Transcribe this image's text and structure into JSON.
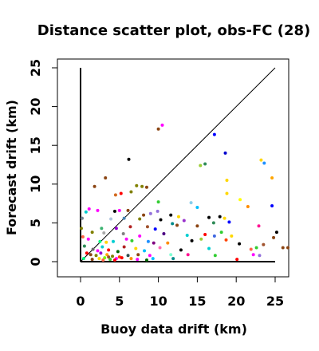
{
  "chart_data": {
    "type": "scatter",
    "title": "Distance scatter plot, obs-FC (28)",
    "xlabel": "Buoy data drift (km)",
    "ylabel": "Forecast drift (km)",
    "xlim": [
      -3,
      27
    ],
    "ylim": [
      -2,
      26
    ],
    "x_ticks": [
      0,
      5,
      10,
      15,
      20,
      25
    ],
    "y_ticks": [
      0,
      5,
      10,
      15,
      20,
      25
    ],
    "x_tick_labels": [
      "0",
      "5",
      "10",
      "15",
      "20",
      "25"
    ],
    "y_tick_labels": [
      "0",
      "5",
      "10",
      "15",
      "20",
      "25"
    ],
    "grid": false,
    "legend": false,
    "reference_lines": [
      {
        "name": "identity",
        "x": [
          0,
          25
        ],
        "y": [
          0,
          25
        ],
        "color": "#000000"
      },
      {
        "name": "x-baseline",
        "x": [
          0,
          25
        ],
        "y": [
          0,
          0
        ],
        "color": "#000000"
      },
      {
        "name": "y-baseline",
        "x": [
          0,
          0
        ],
        "y": [
          0,
          25
        ],
        "color": "#000000"
      }
    ],
    "points": [
      {
        "x": 10.5,
        "y": 17.6,
        "color": "#ff00ff"
      },
      {
        "x": 10.0,
        "y": 17.1,
        "color": "#8b4513"
      },
      {
        "x": 17.2,
        "y": 16.4,
        "color": "#0000ff"
      },
      {
        "x": 18.6,
        "y": 14.0,
        "color": "#0000cd"
      },
      {
        "x": 6.2,
        "y": 13.2,
        "color": "#000000"
      },
      {
        "x": 23.2,
        "y": 13.1,
        "color": "#ffd700"
      },
      {
        "x": 23.6,
        "y": 12.7,
        "color": "#1e90ff"
      },
      {
        "x": 16.0,
        "y": 12.6,
        "color": "#2e8b57"
      },
      {
        "x": 15.4,
        "y": 12.4,
        "color": "#9acd32"
      },
      {
        "x": 3.2,
        "y": 10.8,
        "color": "#8b4513"
      },
      {
        "x": 24.6,
        "y": 10.8,
        "color": "#ffa500"
      },
      {
        "x": 18.8,
        "y": 10.5,
        "color": "#ffd700"
      },
      {
        "x": 1.8,
        "y": 9.7,
        "color": "#8b4513"
      },
      {
        "x": 7.2,
        "y": 9.8,
        "color": "#808000"
      },
      {
        "x": 7.9,
        "y": 9.7,
        "color": "#808000"
      },
      {
        "x": 8.5,
        "y": 9.6,
        "color": "#8b4513"
      },
      {
        "x": 6.5,
        "y": 9.0,
        "color": "#808000"
      },
      {
        "x": 5.2,
        "y": 8.8,
        "color": "#ff0000"
      },
      {
        "x": 4.5,
        "y": 8.6,
        "color": "#d2691e"
      },
      {
        "x": 18.8,
        "y": 8.8,
        "color": "#ffd700"
      },
      {
        "x": 20.5,
        "y": 8.0,
        "color": "#ffff00"
      },
      {
        "x": 14.2,
        "y": 7.6,
        "color": "#87ceeb"
      },
      {
        "x": 10.0,
        "y": 7.7,
        "color": "#32cd32"
      },
      {
        "x": 24.6,
        "y": 7.2,
        "color": "#0000ff"
      },
      {
        "x": 15.0,
        "y": 7.0,
        "color": "#00bfff"
      },
      {
        "x": 1.1,
        "y": 6.8,
        "color": "#ff00ff"
      },
      {
        "x": 0.7,
        "y": 6.4,
        "color": "#00ced1"
      },
      {
        "x": 2.2,
        "y": 6.6,
        "color": "#ff00ff"
      },
      {
        "x": 4.4,
        "y": 6.5,
        "color": "#000000"
      },
      {
        "x": 5.0,
        "y": 6.6,
        "color": "#ff00ff"
      },
      {
        "x": 6.1,
        "y": 6.6,
        "color": "#8b4513"
      },
      {
        "x": 9.0,
        "y": 6.2,
        "color": "#9370db"
      },
      {
        "x": 9.9,
        "y": 6.5,
        "color": "#9370db"
      },
      {
        "x": 8.1,
        "y": 6.0,
        "color": "#8b4513"
      },
      {
        "x": 0.2,
        "y": 5.6,
        "color": "#708090"
      },
      {
        "x": 3.9,
        "y": 5.5,
        "color": "#b0c4de"
      },
      {
        "x": 5.6,
        "y": 5.6,
        "color": "#4682b4"
      },
      {
        "x": 7.6,
        "y": 5.5,
        "color": "#808000"
      },
      {
        "x": 10.3,
        "y": 5.4,
        "color": "#000000"
      },
      {
        "x": 11.6,
        "y": 6.0,
        "color": "#000000"
      },
      {
        "x": 12.6,
        "y": 5.8,
        "color": "#ffd700"
      },
      {
        "x": 13.3,
        "y": 5.3,
        "color": "#9932cc"
      },
      {
        "x": 16.5,
        "y": 5.7,
        "color": "#000000"
      },
      {
        "x": 17.9,
        "y": 5.8,
        "color": "#000000"
      },
      {
        "x": 18.5,
        "y": 5.6,
        "color": "#ffd700"
      },
      {
        "x": 17.1,
        "y": 5.0,
        "color": "#2e8b57"
      },
      {
        "x": 19.1,
        "y": 5.1,
        "color": "#0000ff"
      },
      {
        "x": 21.5,
        "y": 7.1,
        "color": "#ff8c00"
      },
      {
        "x": 11.8,
        "y": 4.9,
        "color": "#008b8b"
      },
      {
        "x": 2.7,
        "y": 4.3,
        "color": "#3cb371"
      },
      {
        "x": 4.6,
        "y": 4.3,
        "color": "#9400d3"
      },
      {
        "x": 6.4,
        "y": 4.5,
        "color": "#b22222"
      },
      {
        "x": 8.6,
        "y": 4.5,
        "color": "#a0522d"
      },
      {
        "x": 9.6,
        "y": 4.2,
        "color": "#0000ff"
      },
      {
        "x": 12.4,
        "y": 4.7,
        "color": "#8b4513"
      },
      {
        "x": 15.0,
        "y": 4.6,
        "color": "#8b4513"
      },
      {
        "x": 22.9,
        "y": 4.6,
        "color": "#ff1493"
      },
      {
        "x": 0.1,
        "y": 4.3,
        "color": "#808000"
      },
      {
        "x": 1.5,
        "y": 3.8,
        "color": "#808000"
      },
      {
        "x": 3.0,
        "y": 3.7,
        "color": "#a9a9a9"
      },
      {
        "x": 5.5,
        "y": 3.6,
        "color": "#808080"
      },
      {
        "x": 7.6,
        "y": 3.3,
        "color": "#ff00ff"
      },
      {
        "x": 10.7,
        "y": 3.6,
        "color": "#4b0082"
      },
      {
        "x": 13.7,
        "y": 3.4,
        "color": "#00ced1"
      },
      {
        "x": 16.0,
        "y": 3.5,
        "color": "#ff0000"
      },
      {
        "x": 17.2,
        "y": 3.3,
        "color": "#4169e1"
      },
      {
        "x": 18.1,
        "y": 3.8,
        "color": "#32cd32"
      },
      {
        "x": 19.4,
        "y": 3.3,
        "color": "#ffd700"
      },
      {
        "x": 25.2,
        "y": 3.8,
        "color": "#000000"
      },
      {
        "x": 24.8,
        "y": 3.1,
        "color": "#8b4513"
      },
      {
        "x": 0.3,
        "y": 3.2,
        "color": "#ff6347"
      },
      {
        "x": 1.0,
        "y": 2.9,
        "color": "#ff00ff"
      },
      {
        "x": 2.5,
        "y": 2.6,
        "color": "#00ff7f"
      },
      {
        "x": 3.3,
        "y": 2.5,
        "color": "#ffd700"
      },
      {
        "x": 4.2,
        "y": 2.6,
        "color": "#00ced1"
      },
      {
        "x": 5.9,
        "y": 2.9,
        "color": "#ff00ff"
      },
      {
        "x": 6.6,
        "y": 2.7,
        "color": "#32cd32"
      },
      {
        "x": 8.7,
        "y": 2.6,
        "color": "#1e90ff"
      },
      {
        "x": 9.4,
        "y": 2.4,
        "color": "#800080"
      },
      {
        "x": 11.2,
        "y": 2.4,
        "color": "#ff8c00"
      },
      {
        "x": 14.3,
        "y": 2.7,
        "color": "#000000"
      },
      {
        "x": 15.5,
        "y": 2.9,
        "color": "#9acd32"
      },
      {
        "x": 18.7,
        "y": 2.8,
        "color": "#ff4500"
      },
      {
        "x": 20.4,
        "y": 2.3,
        "color": "#000000"
      },
      {
        "x": 23.5,
        "y": 2.2,
        "color": "#a0522d"
      },
      {
        "x": 26.0,
        "y": 1.8,
        "color": "#8b4513"
      },
      {
        "x": 0.5,
        "y": 2.0,
        "color": "#2e8b57"
      },
      {
        "x": 1.6,
        "y": 1.6,
        "color": "#696969"
      },
      {
        "x": 2.2,
        "y": 1.4,
        "color": "#ff00ff"
      },
      {
        "x": 2.8,
        "y": 1.9,
        "color": "#00ced1"
      },
      {
        "x": 3.6,
        "y": 1.5,
        "color": "#ff0000"
      },
      {
        "x": 4.8,
        "y": 1.3,
        "color": "#006400"
      },
      {
        "x": 5.6,
        "y": 1.9,
        "color": "#b22222"
      },
      {
        "x": 7.1,
        "y": 1.7,
        "color": "#ffd700"
      },
      {
        "x": 8.2,
        "y": 1.4,
        "color": "#00bfff"
      },
      {
        "x": 10.2,
        "y": 1.8,
        "color": "#ff69b4"
      },
      {
        "x": 12.9,
        "y": 1.5,
        "color": "#000000"
      },
      {
        "x": 16.5,
        "y": 1.7,
        "color": "#00ced1"
      },
      {
        "x": 21.9,
        "y": 1.6,
        "color": "#ff6347"
      },
      {
        "x": 22.6,
        "y": 1.8,
        "color": "#32cd32"
      },
      {
        "x": 0.8,
        "y": 1.1,
        "color": "#ff0000"
      },
      {
        "x": 1.3,
        "y": 0.9,
        "color": "#8b4513"
      },
      {
        "x": 2.0,
        "y": 0.8,
        "color": "#808000"
      },
      {
        "x": 2.6,
        "y": 1.1,
        "color": "#9400d3"
      },
      {
        "x": 3.4,
        "y": 0.9,
        "color": "#ffa500"
      },
      {
        "x": 4.1,
        "y": 0.7,
        "color": "#808000"
      },
      {
        "x": 5.0,
        "y": 0.6,
        "color": "#ff4500"
      },
      {
        "x": 6.1,
        "y": 0.8,
        "color": "#2f4f4f"
      },
      {
        "x": 7.4,
        "y": 0.9,
        "color": "#8b4513"
      },
      {
        "x": 8.9,
        "y": 0.8,
        "color": "#ff00ff"
      },
      {
        "x": 11.6,
        "y": 0.9,
        "color": "#7fffd4"
      },
      {
        "x": 13.8,
        "y": 0.9,
        "color": "#ff1493"
      },
      {
        "x": 17.3,
        "y": 0.8,
        "color": "#32cd32"
      },
      {
        "x": 22.2,
        "y": 0.9,
        "color": "#ff00ff"
      },
      {
        "x": 23.0,
        "y": 0.8,
        "color": "#9370db"
      },
      {
        "x": 27.0,
        "y": 1.8,
        "color": "#8b4513"
      },
      {
        "x": 0.4,
        "y": 0.4,
        "color": "#00ff7f"
      },
      {
        "x": 1.5,
        "y": 0.3,
        "color": "#8b4513"
      },
      {
        "x": 2.4,
        "y": 0.4,
        "color": "#ffd700"
      },
      {
        "x": 3.1,
        "y": 0.5,
        "color": "#7cfc00"
      },
      {
        "x": 3.8,
        "y": 0.3,
        "color": "#32cd32"
      },
      {
        "x": 4.6,
        "y": 0.4,
        "color": "#ff00ff"
      },
      {
        "x": 5.3,
        "y": 0.5,
        "color": "#ff0000"
      },
      {
        "x": 6.5,
        "y": 0.4,
        "color": "#ff8c00"
      },
      {
        "x": 7.3,
        "y": 0.3,
        "color": "#ff00ff"
      },
      {
        "x": 9.3,
        "y": 0.4,
        "color": "#00bfff"
      },
      {
        "x": 11.9,
        "y": 0.4,
        "color": "#008b8b"
      },
      {
        "x": 20.1,
        "y": 0.3,
        "color": "#ff0000"
      },
      {
        "x": 4.4,
        "y": 0.2,
        "color": "#ff0000"
      },
      {
        "x": 2.9,
        "y": 0.2,
        "color": "#ff6347"
      },
      {
        "x": 8.5,
        "y": 0.2,
        "color": "#006400"
      },
      {
        "x": 3.6,
        "y": 0.6,
        "color": "#a0522d"
      }
    ]
  }
}
